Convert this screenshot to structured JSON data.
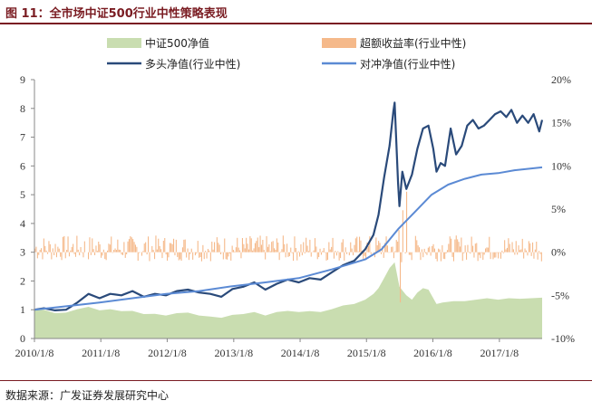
{
  "figure": {
    "title": "图 11：全市场中证500行业中性策略表现",
    "source": "数据来源：广发证券发展研究中心"
  },
  "chart_data": {
    "type": "line",
    "x_ticks": [
      "2010/1/8",
      "2011/1/8",
      "2012/1/8",
      "2013/1/8",
      "2014/1/8",
      "2015/1/8",
      "2016/1/8",
      "2017/1/8"
    ],
    "y_left": {
      "ticks": [
        "0",
        "1",
        "2",
        "3",
        "4",
        "5",
        "6",
        "7",
        "8",
        "9"
      ],
      "ylim": [
        0,
        9
      ]
    },
    "y_right": {
      "ticks": [
        "20%",
        "15%",
        "10%",
        "5%",
        "0%",
        "-5%",
        "-10%"
      ],
      "ylim": [
        -0.1,
        0.2
      ]
    },
    "grid": false,
    "legend_placement": "top",
    "series": [
      {
        "name": "中证500净值",
        "kind": "area",
        "axis": "left",
        "color": "#c9ddb0",
        "x": [
          "2010/1/8",
          "2010/3/1",
          "2010/5/1",
          "2010/7/1",
          "2010/9/1",
          "2010/11/1",
          "2011/1/1",
          "2011/3/1",
          "2011/5/1",
          "2011/7/1",
          "2011/9/1",
          "2011/11/1",
          "2012/1/1",
          "2012/3/1",
          "2012/5/1",
          "2012/7/1",
          "2012/9/1",
          "2012/11/1",
          "2013/1/1",
          "2013/3/1",
          "2013/5/1",
          "2013/7/1",
          "2013/9/1",
          "2013/11/1",
          "2014/1/1",
          "2014/3/1",
          "2014/5/1",
          "2014/7/1",
          "2014/9/1",
          "2014/11/1",
          "2015/1/1",
          "2015/2/15",
          "2015/3/15",
          "2015/4/15",
          "2015/5/15",
          "2015/6/12",
          "2015/7/8",
          "2015/8/15",
          "2015/9/15",
          "2015/10/15",
          "2015/11/15",
          "2015/12/15",
          "2016/1/28",
          "2016/3/1",
          "2016/5/1",
          "2016/7/1",
          "2016/9/1",
          "2016/11/1",
          "2017/1/1",
          "2017/3/1",
          "2017/5/1",
          "2017/7/1",
          "2017/8/31"
        ],
        "values": [
          1.0,
          1.0,
          0.88,
          0.9,
          1.02,
          1.1,
          0.98,
          1.02,
          0.95,
          0.96,
          0.85,
          0.86,
          0.8,
          0.88,
          0.9,
          0.8,
          0.76,
          0.72,
          0.82,
          0.85,
          0.92,
          0.8,
          0.92,
          0.96,
          0.92,
          0.95,
          0.92,
          1.02,
          1.15,
          1.2,
          1.35,
          1.55,
          1.75,
          2.1,
          2.45,
          2.65,
          1.8,
          1.5,
          1.35,
          1.6,
          1.75,
          1.7,
          1.2,
          1.25,
          1.3,
          1.3,
          1.35,
          1.4,
          1.35,
          1.4,
          1.38,
          1.4,
          1.42
        ]
      },
      {
        "name": "超额收益率(行业中性)",
        "kind": "bar",
        "axis": "right",
        "color": "#f5b98a",
        "x": [
          "2010/1/8",
          "2017/8/31"
        ],
        "note_values": "weekly excess returns, mostly within -2% to +2%, spikes near 2015/7"
      },
      {
        "name": "多头净值(行业中性)",
        "kind": "line",
        "axis": "left",
        "color": "#2a4a7a",
        "x": [
          "2010/1/8",
          "2010/3/1",
          "2010/5/1",
          "2010/7/1",
          "2010/9/1",
          "2010/11/1",
          "2011/1/1",
          "2011/3/1",
          "2011/5/1",
          "2011/7/1",
          "2011/9/1",
          "2011/11/1",
          "2012/1/1",
          "2012/3/1",
          "2012/5/1",
          "2012/7/1",
          "2012/9/1",
          "2012/11/1",
          "2013/1/1",
          "2013/3/1",
          "2013/5/1",
          "2013/7/1",
          "2013/9/1",
          "2013/11/1",
          "2014/1/1",
          "2014/3/1",
          "2014/5/1",
          "2014/7/1",
          "2014/9/1",
          "2014/11/1",
          "2015/1/1",
          "2015/2/15",
          "2015/3/15",
          "2015/4/15",
          "2015/5/15",
          "2015/6/5",
          "2015/6/12",
          "2015/7/1",
          "2015/7/8",
          "2015/7/24",
          "2015/8/15",
          "2015/9/15",
          "2015/10/15",
          "2015/11/15",
          "2015/12/15",
          "2016/1/10",
          "2016/1/28",
          "2016/2/20",
          "2016/3/15",
          "2016/4/15",
          "2016/5/15",
          "2016/6/15",
          "2016/7/15",
          "2016/8/15",
          "2016/9/15",
          "2016/10/15",
          "2016/11/15",
          "2016/12/15",
          "2017/1/15",
          "2017/2/15",
          "2017/3/15",
          "2017/4/15",
          "2017/5/15",
          "2017/6/15",
          "2017/7/15",
          "2017/8/15",
          "2017/8/31"
        ],
        "values": [
          1.0,
          1.05,
          0.98,
          1.0,
          1.25,
          1.55,
          1.4,
          1.55,
          1.5,
          1.65,
          1.45,
          1.55,
          1.5,
          1.65,
          1.7,
          1.6,
          1.55,
          1.45,
          1.72,
          1.8,
          1.95,
          1.7,
          1.9,
          2.05,
          1.95,
          2.1,
          2.05,
          2.3,
          2.55,
          2.7,
          3.1,
          3.6,
          4.3,
          5.6,
          6.7,
          7.9,
          8.2,
          5.4,
          4.6,
          5.8,
          5.2,
          5.7,
          6.6,
          7.3,
          7.4,
          6.6,
          5.8,
          6.1,
          6.0,
          7.3,
          6.4,
          6.7,
          7.4,
          7.6,
          7.3,
          7.4,
          7.6,
          7.8,
          7.9,
          7.7,
          7.95,
          7.5,
          7.75,
          7.5,
          7.8,
          7.2,
          7.6
        ]
      },
      {
        "name": "对冲净值(行业中性)",
        "kind": "line",
        "axis": "left",
        "color": "#5b8ad4",
        "x": [
          "2010/1/8",
          "2010/7/1",
          "2011/1/1",
          "2011/7/1",
          "2012/1/1",
          "2012/7/1",
          "2013/1/1",
          "2013/7/1",
          "2014/1/1",
          "2014/7/1",
          "2015/1/1",
          "2015/4/1",
          "2015/7/1",
          "2015/10/1",
          "2016/1/1",
          "2016/4/1",
          "2016/7/1",
          "2016/10/1",
          "2017/1/1",
          "2017/4/1",
          "2017/8/31"
        ],
        "values": [
          1.0,
          1.12,
          1.25,
          1.4,
          1.55,
          1.65,
          1.82,
          1.95,
          2.1,
          2.4,
          2.75,
          3.1,
          3.8,
          4.4,
          5.0,
          5.35,
          5.55,
          5.7,
          5.75,
          5.85,
          5.95
        ]
      }
    ]
  }
}
